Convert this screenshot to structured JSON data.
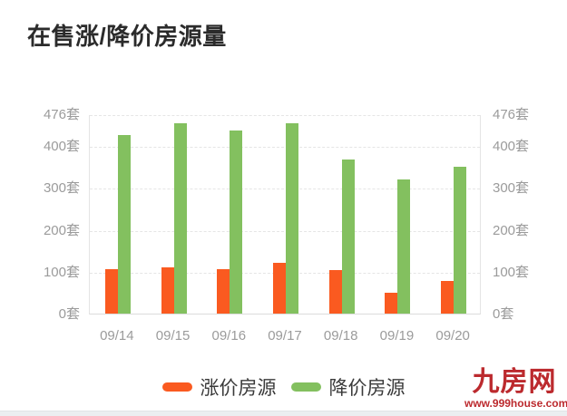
{
  "chart_data": {
    "type": "bar",
    "title": "在售涨/降价房源量",
    "unit": "套",
    "categories": [
      "09/14",
      "09/15",
      "09/16",
      "09/17",
      "09/18",
      "09/19",
      "09/20"
    ],
    "series": [
      {
        "key": "rise",
        "name": "涨价房源",
        "color": "#FA5A20",
        "values": [
          105,
          110,
          107,
          122,
          103,
          50,
          78
        ]
      },
      {
        "key": "drop",
        "name": "降价房源",
        "color": "#83C05F",
        "values": [
          427,
          455,
          437,
          455,
          368,
          320,
          350
        ]
      }
    ],
    "ylim": [
      0,
      476
    ],
    "y_ticks": [
      0,
      100,
      200,
      300,
      400,
      476
    ],
    "y_tick_labels": [
      "0套",
      "100套",
      "200套",
      "300套",
      "400套",
      "476套"
    ],
    "grid": "horizontal-dashed",
    "legend_position": "bottom",
    "xlabel": "",
    "ylabel": "套"
  },
  "watermark": {
    "brand": "九房网",
    "url": "www.999house.com",
    "color": "#BC2A2E"
  },
  "theme": {
    "background": "#FFFFFF",
    "title_color": "#2B2B2B",
    "grid_color": "#E5E5E5",
    "axis_text_color": "#9B9B9B",
    "legend_text_color": "#3A3A3A"
  }
}
